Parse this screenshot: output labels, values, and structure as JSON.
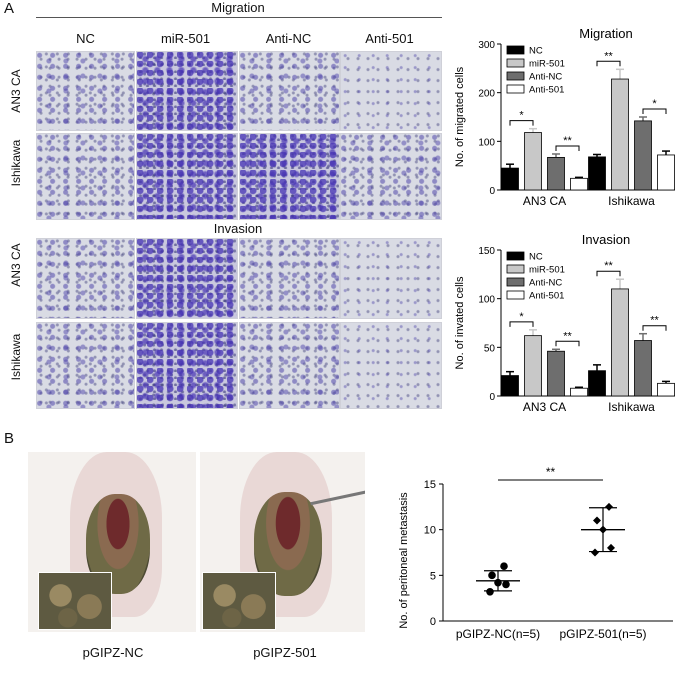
{
  "panel_a": {
    "label": "A",
    "migration_header": "Migration",
    "invasion_header": "Invasion",
    "columns": [
      "NC",
      "miR-501",
      "Anti-NC",
      "Anti-501"
    ],
    "rows": [
      "AN3 CA",
      "Ishikawa"
    ]
  },
  "panel_b": {
    "label": "B",
    "mouse_labels": [
      "pGIPZ-NC",
      "pGIPZ-501"
    ]
  },
  "chart_data": [
    {
      "type": "bar",
      "title": "Migration",
      "ylabel": "No. of migrated cells",
      "xlabel": "",
      "categories": [
        "AN3 CA",
        "Ishikawa"
      ],
      "ylim": [
        0,
        300
      ],
      "yticks": [
        0,
        100,
        200,
        300
      ],
      "legend_position": "top-left",
      "series": [
        {
          "name": "NC",
          "values": [
            45,
            68
          ],
          "errors": [
            8,
            5
          ],
          "color": "#000000"
        },
        {
          "name": "miR-501",
          "values": [
            118,
            228
          ],
          "errors": [
            8,
            20
          ],
          "color": "#c8c8c8"
        },
        {
          "name": "Anti-NC",
          "values": [
            67,
            142
          ],
          "errors": [
            7,
            8
          ],
          "color": "#6e6e6e"
        },
        {
          "name": "Anti-501",
          "values": [
            24,
            72
          ],
          "errors": [
            2,
            8
          ],
          "color": "#ffffff"
        }
      ],
      "annotations": [
        {
          "category": "AN3 CA",
          "from": "NC",
          "to": "miR-501",
          "text": "*"
        },
        {
          "category": "AN3 CA",
          "from": "Anti-NC",
          "to": "Anti-501",
          "text": "**"
        },
        {
          "category": "Ishikawa",
          "from": "NC",
          "to": "miR-501",
          "text": "**"
        },
        {
          "category": "Ishikawa",
          "from": "Anti-NC",
          "to": "Anti-501",
          "text": "*"
        }
      ]
    },
    {
      "type": "bar",
      "title": "Invasion",
      "ylabel": "No. of invated cells",
      "xlabel": "",
      "categories": [
        "AN3 CA",
        "Ishikawa"
      ],
      "ylim": [
        0,
        150
      ],
      "yticks": [
        0,
        50,
        100,
        150
      ],
      "legend_position": "top-left",
      "series": [
        {
          "name": "NC",
          "values": [
            21,
            26
          ],
          "errors": [
            4,
            6
          ],
          "color": "#000000"
        },
        {
          "name": "miR-501",
          "values": [
            62,
            110
          ],
          "errors": [
            6,
            10
          ],
          "color": "#c8c8c8"
        },
        {
          "name": "Anti-NC",
          "values": [
            46,
            57
          ],
          "errors": [
            2,
            7
          ],
          "color": "#6e6e6e"
        },
        {
          "name": "Anti-501",
          "values": [
            8,
            13
          ],
          "errors": [
            1,
            2
          ],
          "color": "#ffffff"
        }
      ],
      "annotations": [
        {
          "category": "AN3 CA",
          "from": "NC",
          "to": "miR-501",
          "text": "*"
        },
        {
          "category": "AN3 CA",
          "from": "Anti-NC",
          "to": "Anti-501",
          "text": "**"
        },
        {
          "category": "Ishikawa",
          "from": "NC",
          "to": "miR-501",
          "text": "**"
        },
        {
          "category": "Ishikawa",
          "from": "Anti-NC",
          "to": "Anti-501",
          "text": "**"
        }
      ]
    },
    {
      "type": "scatter",
      "title": "",
      "ylabel": "No. of peritoneal metastasis",
      "xlabel": "",
      "categories": [
        "pGIPZ-NC(n=5)",
        "pGIPZ-501(n=5)"
      ],
      "ylim": [
        0,
        15
      ],
      "yticks": [
        0,
        5,
        10,
        15
      ],
      "groups": [
        {
          "name": "pGIPZ-NC(n=5)",
          "points": [
            3.2,
            4,
            4.2,
            5,
            6
          ],
          "mean": 4.4,
          "sd": 1.1
        },
        {
          "name": "pGIPZ-501(n=5)",
          "points": [
            7.5,
            8,
            10,
            11,
            12.5
          ],
          "mean": 10,
          "sd": 2.4
        }
      ],
      "significance": "**"
    }
  ]
}
